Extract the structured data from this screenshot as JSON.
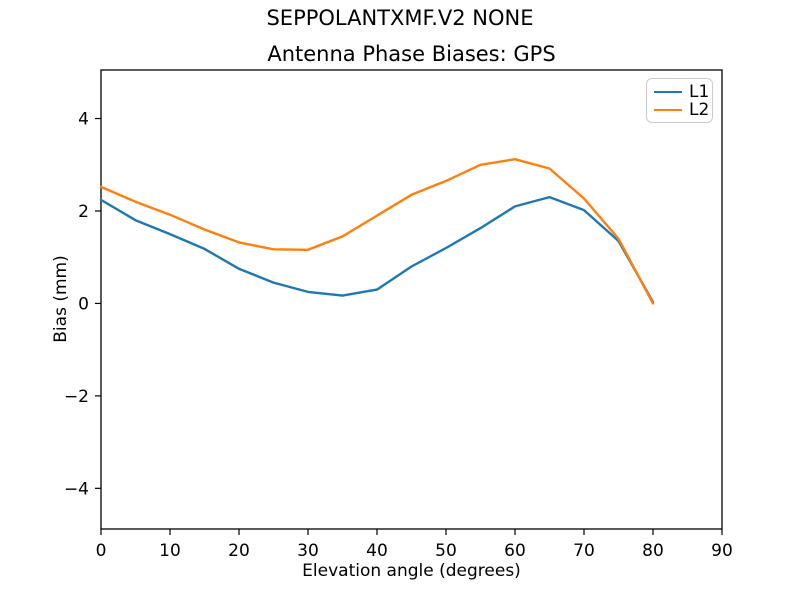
{
  "suptitle": "SEPPOLANTXMF.V2 NONE",
  "colors": {
    "background": "#ffffff",
    "spine": "#000000",
    "tick_text": "#000000",
    "l1": "#1f77b4",
    "l2": "#ff7f0e"
  },
  "chart_data": {
    "type": "line",
    "title": "Antenna Phase Biases: GPS",
    "xlabel": "Elevation angle (degrees)",
    "ylabel": "Bias (mm)",
    "xlim": [
      0,
      90
    ],
    "ylim": [
      -4.88,
      5.05
    ],
    "grid": false,
    "xticks": {
      "values": [
        0,
        10,
        20,
        30,
        40,
        50,
        60,
        70,
        80,
        90
      ],
      "labels": [
        "0",
        "10",
        "20",
        "30",
        "40",
        "50",
        "60",
        "70",
        "80",
        "90"
      ]
    },
    "yticks": {
      "values": [
        -4,
        -2,
        0,
        2,
        4
      ],
      "labels": [
        "−4",
        "−2",
        "0",
        "2",
        "4"
      ]
    },
    "legend": {
      "position": "upper right",
      "entries": [
        "L1",
        "L2"
      ]
    },
    "x": [
      0,
      5,
      10,
      15,
      20,
      25,
      30,
      35,
      40,
      45,
      50,
      55,
      60,
      65,
      70,
      75,
      80
    ],
    "series": [
      {
        "name": "L1",
        "color": "#1f77b4",
        "values": [
          2.24,
          1.8,
          1.5,
          1.18,
          0.75,
          0.45,
          0.25,
          0.17,
          0.3,
          0.8,
          1.2,
          1.63,
          2.1,
          2.3,
          2.02,
          1.35,
          0.03
        ]
      },
      {
        "name": "L2",
        "color": "#ff7f0e",
        "values": [
          2.52,
          2.2,
          1.92,
          1.6,
          1.32,
          1.17,
          1.16,
          1.45,
          1.9,
          2.35,
          2.65,
          3.0,
          3.12,
          2.92,
          2.27,
          1.4,
          0.0
        ]
      }
    ]
  }
}
